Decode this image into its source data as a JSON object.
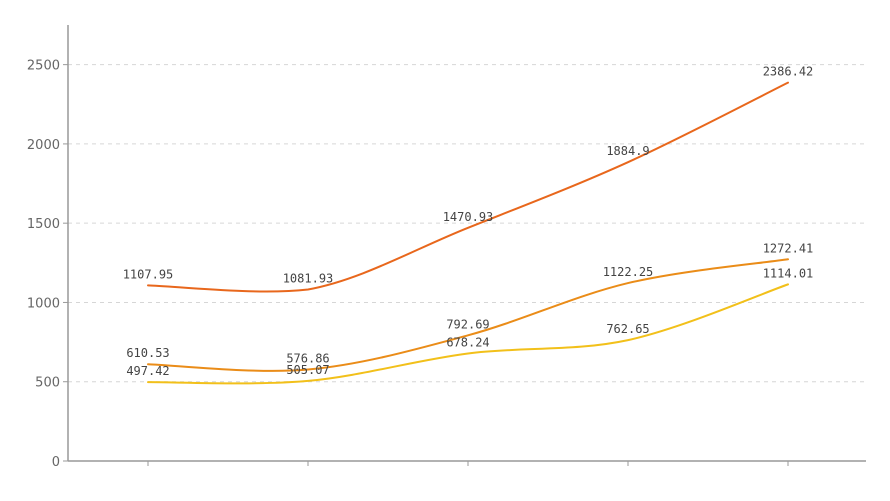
{
  "chart_data": {
    "type": "line",
    "title": "",
    "xlabel": "",
    "ylabel": "",
    "categories": [
      "",
      "",
      "",
      "",
      ""
    ],
    "ylim": [
      0,
      2750
    ],
    "yticks": [
      0,
      500,
      1000,
      1500,
      2000,
      2500
    ],
    "grid": "horizontal-dashed",
    "smooth": true,
    "series": [
      {
        "color": "#e8671c",
        "values": [
          1107.95,
          1081.93,
          1470.93,
          1884.9,
          2386.42
        ],
        "labels": [
          "1107.95",
          "1081.93",
          "1470.93",
          "1884.9",
          "2386.42"
        ]
      },
      {
        "color": "#ea8c18",
        "values": [
          610.53,
          576.86,
          792.69,
          1122.25,
          1272.41
        ],
        "labels": [
          "610.53",
          "576.86",
          "792.69",
          "1122.25",
          "1272.41"
        ]
      },
      {
        "color": "#f2c01a",
        "values": [
          497.42,
          505.07,
          678.24,
          762.65,
          1114.01
        ],
        "labels": [
          "497.42",
          "505.07",
          "678.24",
          "762.65",
          "1114.01"
        ]
      }
    ]
  }
}
